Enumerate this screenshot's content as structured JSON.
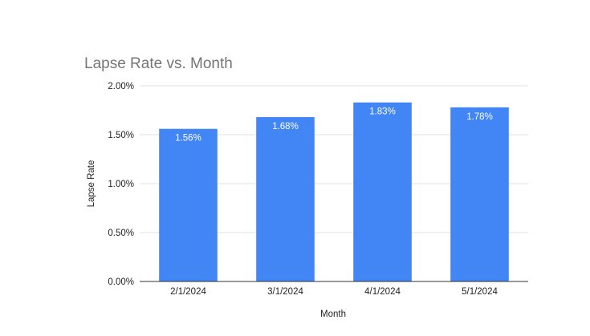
{
  "chart_data": {
    "type": "bar",
    "title": "Lapse Rate vs. Month",
    "xlabel": "Month",
    "ylabel": "Lapse Rate",
    "categories": [
      "2/1/2024",
      "3/1/2024",
      "4/1/2024",
      "5/1/2024"
    ],
    "values": [
      1.56,
      1.68,
      1.83,
      1.78
    ],
    "data_labels": [
      "1.56%",
      "1.68%",
      "1.83%",
      "1.78%"
    ],
    "ylim": [
      0,
      2.0
    ],
    "yticks": [
      0,
      0.5,
      1.0,
      1.5,
      2.0
    ],
    "ytick_labels": [
      "0.00%",
      "0.50%",
      "1.00%",
      "1.50%",
      "2.00%"
    ],
    "grid": true,
    "legend": "none",
    "bar_color": "#4285f4",
    "grid_color": "#e0e0e0",
    "axis_color": "#333333"
  }
}
